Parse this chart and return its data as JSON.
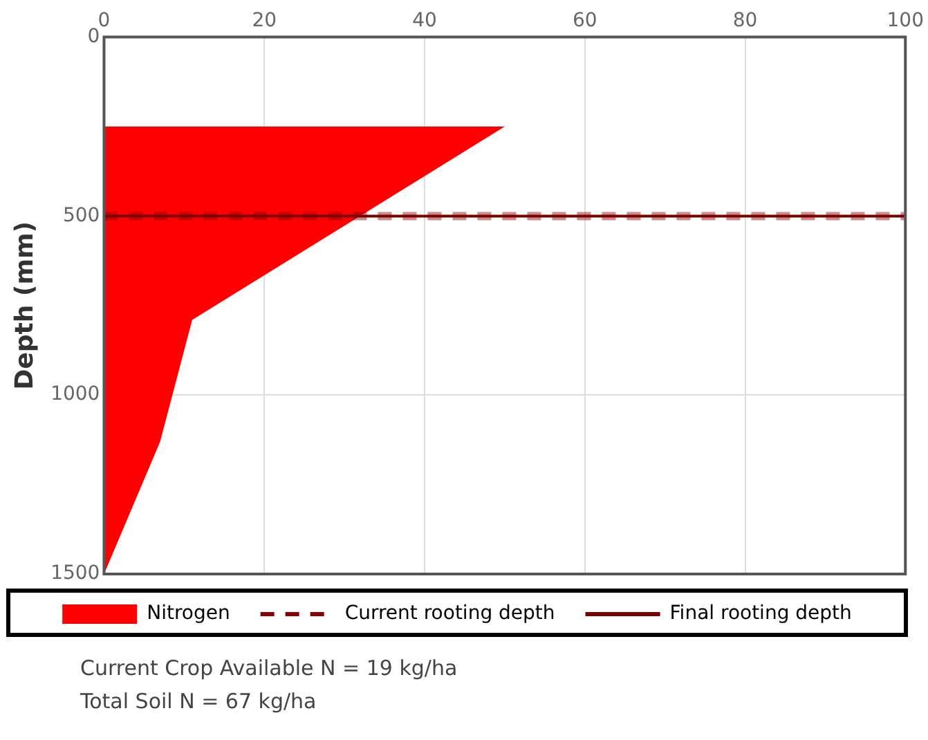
{
  "chart_data": {
    "type": "area",
    "ylabel": "Depth (mm)",
    "xlim": [
      0,
      100
    ],
    "xticks": [
      0,
      20,
      40,
      60,
      80,
      100
    ],
    "ylim": [
      1500,
      0
    ],
    "yticks": [
      0,
      500,
      1000,
      1500
    ],
    "grid": true,
    "legend": "bottom",
    "series": [
      {
        "name": "Nitrogen",
        "color": "#ff0000",
        "x": [
          0,
          50,
          11,
          7,
          0
        ],
        "values": [
          250,
          250,
          790,
          1130,
          1500
        ]
      }
    ],
    "ref_lines": [
      {
        "axis": "y",
        "value": 500,
        "label": "Current rooting depth",
        "color": "#8b0000",
        "line_style": "dashed"
      },
      {
        "axis": "y",
        "value": 500,
        "label": "Final rooting depth",
        "color": "#7b0000",
        "line_style": "solid"
      }
    ],
    "annotations": [
      "Current Crop Available N = 19 kg/ha",
      "Total Soil N = 67 kg/ha"
    ]
  }
}
